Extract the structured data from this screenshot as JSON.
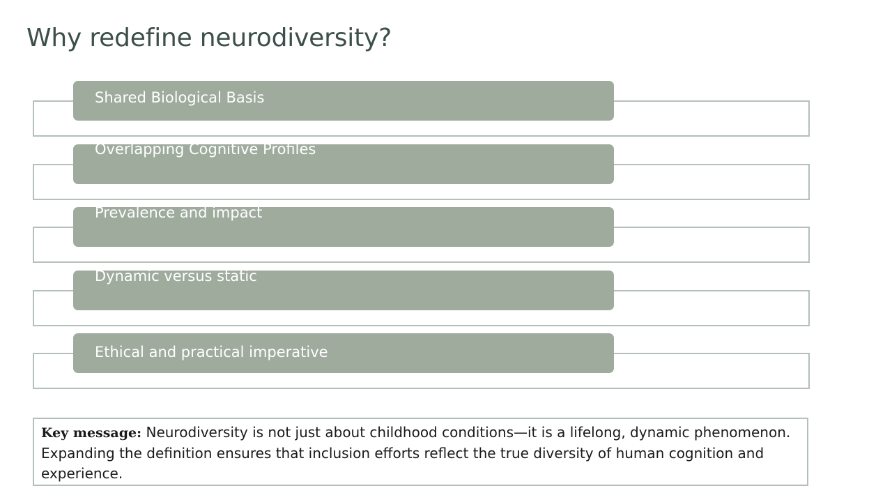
{
  "title": "Why redefine neurodiversity?",
  "items": [
    {
      "label": "Shared Biological Basis"
    },
    {
      "label": "Overlapping Cognitive Profiles"
    },
    {
      "label": "Prevalence and impact"
    },
    {
      "label": "Dynamic versus static"
    },
    {
      "label": "Ethical and practical imperative"
    }
  ],
  "key_message": {
    "label": "Key message:",
    "text": "Neurodiversity is not just about childhood conditions—it is a lifelong, dynamic phenomenon. Expanding the definition ensures that inclusion efforts reflect the true diversity of human cognition and experience."
  },
  "colors": {
    "title": "#3d4f4a",
    "pill": "#9eab9d",
    "frame_border": "#b5bfba"
  }
}
